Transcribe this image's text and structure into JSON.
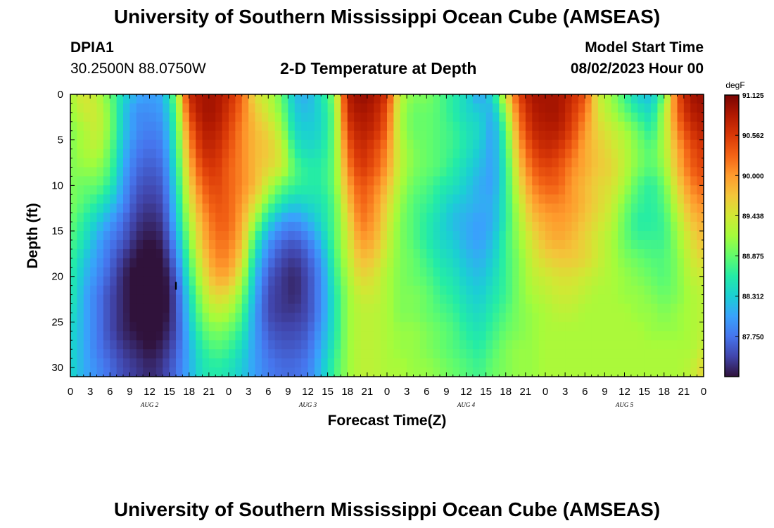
{
  "header": {
    "title": "University of Southern Mississippi Ocean Cube (AMSEAS)",
    "station_id": "DPIA1",
    "coordinates": "30.2500N  88.0750W",
    "model_start_label": "Model Start Time",
    "model_start_value": "08/02/2023 Hour 00",
    "plot_title": "2-D Temperature at Depth"
  },
  "footer": {
    "title": "University of Southern Mississippi Ocean Cube (AMSEAS)"
  },
  "chart_data": {
    "type": "heatmap",
    "title": "2-D Temperature at Depth",
    "xlabel": "Forecast Time(Z)",
    "ylabel": "Depth (ft)",
    "x_range_hours": [
      0,
      96
    ],
    "y_range_ft": [
      0,
      31
    ],
    "y_inverted": true,
    "x_ticks": [
      "0",
      "3",
      "6",
      "9",
      "12",
      "15",
      "18",
      "21",
      "0",
      "3",
      "6",
      "9",
      "12",
      "15",
      "18",
      "21",
      "0",
      "3",
      "6",
      "9",
      "12",
      "15",
      "18",
      "21",
      "0",
      "3",
      "6",
      "9",
      "12",
      "15",
      "18",
      "21",
      "0"
    ],
    "x_tick_hours": [
      0,
      3,
      6,
      9,
      12,
      15,
      18,
      21,
      24,
      27,
      30,
      33,
      36,
      39,
      42,
      45,
      48,
      51,
      54,
      57,
      60,
      63,
      66,
      69,
      72,
      75,
      78,
      81,
      84,
      87,
      90,
      93,
      96
    ],
    "day_labels": [
      {
        "label": "AUG 2",
        "hour": 12
      },
      {
        "label": "AUG 3",
        "hour": 36
      },
      {
        "label": "AUG 4",
        "hour": 60
      },
      {
        "label": "AUG 5",
        "hour": 84
      }
    ],
    "y_ticks": [
      "0",
      "5",
      "10",
      "15",
      "20",
      "25",
      "30"
    ],
    "y_tick_values": [
      0,
      5,
      10,
      15,
      20,
      25,
      30
    ],
    "colorbar": {
      "unit": "degF",
      "min": 87.187,
      "max": 91.125,
      "tick_values": [
        91.125,
        90.562,
        90.0,
        89.438,
        88.875,
        88.312,
        87.75
      ],
      "tick_labels": [
        "91.125",
        "90.562",
        "90.000",
        "89.438",
        "88.875",
        "88.312",
        "87.750"
      ],
      "colormap": [
        "#30123b",
        "#4145ab",
        "#4675ed",
        "#39a2fc",
        "#1bcfd4",
        "#24eca6",
        "#61fc6c",
        "#a4fc3b",
        "#d1e834",
        "#f3c63a",
        "#fe9b2d",
        "#f36315",
        "#d93807",
        "#b11901",
        "#7a0403"
      ]
    },
    "marker": {
      "label": "I",
      "hour": 16,
      "depth_ft": 21
    },
    "temperature_degF": {
      "hours": [
        0,
        2,
        4,
        6,
        8,
        10,
        12,
        14,
        16,
        18,
        20,
        22,
        24,
        26,
        28,
        30,
        32,
        34,
        36,
        38,
        40,
        42,
        44,
        46,
        48,
        50,
        52,
        54,
        56,
        58,
        60,
        62,
        64,
        66,
        68,
        70,
        72,
        74,
        76,
        78,
        80,
        82,
        84,
        86,
        88,
        90,
        92,
        94,
        96
      ],
      "depths_ft": [
        0,
        2,
        4,
        6,
        8,
        10,
        12,
        14,
        16,
        18,
        20,
        22,
        24,
        26,
        28,
        30
      ],
      "values": [
        [
          89.2,
          89.5,
          89.3,
          88.9,
          88.4,
          88.1,
          88.0,
          88.1,
          89.0,
          90.7,
          90.9,
          90.9,
          90.7,
          90.3,
          89.5,
          89.3,
          88.9,
          88.2,
          88.1,
          88.5,
          89.0,
          90.8,
          91.0,
          90.9,
          90.6,
          89.3,
          89.0,
          89.0,
          88.8,
          88.6,
          88.4,
          88.0,
          88.4,
          89.5,
          90.5,
          90.9,
          90.9,
          90.9,
          90.7,
          90.4,
          89.4,
          89.1,
          88.7,
          88.3,
          88.2,
          88.9,
          90.4,
          90.9,
          91.0
        ],
        [
          89.1,
          89.4,
          89.4,
          89.0,
          88.3,
          87.9,
          87.9,
          88.0,
          88.8,
          90.5,
          90.9,
          90.9,
          90.6,
          90.2,
          89.7,
          89.4,
          89.0,
          88.3,
          88.2,
          88.4,
          88.9,
          90.7,
          90.9,
          90.8,
          90.4,
          89.2,
          88.9,
          88.9,
          88.8,
          88.6,
          88.4,
          88.3,
          88.1,
          89.1,
          90.3,
          90.8,
          90.9,
          90.9,
          90.6,
          90.2,
          89.5,
          89.2,
          88.9,
          88.6,
          88.4,
          89.2,
          90.3,
          90.8,
          90.9
        ],
        [
          89.0,
          89.2,
          89.4,
          89.0,
          88.3,
          87.9,
          87.8,
          87.9,
          88.7,
          90.2,
          90.8,
          90.8,
          90.5,
          90.1,
          89.8,
          89.6,
          89.2,
          88.4,
          88.3,
          88.4,
          88.9,
          90.5,
          90.8,
          90.7,
          90.3,
          89.2,
          88.9,
          88.9,
          88.8,
          88.7,
          88.5,
          88.4,
          88.0,
          88.8,
          90.1,
          90.7,
          90.8,
          90.8,
          90.5,
          90.0,
          89.6,
          89.4,
          89.2,
          88.9,
          88.6,
          89.2,
          90.1,
          90.6,
          90.8
        ],
        [
          89.0,
          89.2,
          89.3,
          88.9,
          88.2,
          87.8,
          87.7,
          87.8,
          88.6,
          90.0,
          90.7,
          90.7,
          90.4,
          90.1,
          89.8,
          89.7,
          89.4,
          88.6,
          88.4,
          88.5,
          88.9,
          90.3,
          90.7,
          90.5,
          90.1,
          89.3,
          89.0,
          88.9,
          88.8,
          88.7,
          88.5,
          88.3,
          88.0,
          88.7,
          89.9,
          90.5,
          90.7,
          90.6,
          90.3,
          89.9,
          89.7,
          89.5,
          89.3,
          89.0,
          88.8,
          89.2,
          89.9,
          90.4,
          90.6
        ],
        [
          89.0,
          89.1,
          89.1,
          88.8,
          88.1,
          87.7,
          87.6,
          87.7,
          88.5,
          89.8,
          90.5,
          90.6,
          90.3,
          90.1,
          89.8,
          89.6,
          89.4,
          88.8,
          88.6,
          88.6,
          88.9,
          90.1,
          90.6,
          90.4,
          90.0,
          89.3,
          89.0,
          88.9,
          88.8,
          88.6,
          88.4,
          88.2,
          88.0,
          88.6,
          89.7,
          90.3,
          90.5,
          90.4,
          90.1,
          89.9,
          89.7,
          89.6,
          89.3,
          89.0,
          88.8,
          89.1,
          89.8,
          90.3,
          90.5
        ],
        [
          89.0,
          88.9,
          88.9,
          88.6,
          88.0,
          87.6,
          87.5,
          87.6,
          88.4,
          89.6,
          90.3,
          90.5,
          90.3,
          90.1,
          89.8,
          89.3,
          88.9,
          88.7,
          88.6,
          88.6,
          88.9,
          89.9,
          90.4,
          90.2,
          89.8,
          89.2,
          88.9,
          88.8,
          88.6,
          88.5,
          88.3,
          88.1,
          88.0,
          88.6,
          89.5,
          90.1,
          90.3,
          90.3,
          90.0,
          89.8,
          89.6,
          89.5,
          89.2,
          88.8,
          88.6,
          88.9,
          89.6,
          90.1,
          90.3
        ],
        [
          89.0,
          88.8,
          88.6,
          88.3,
          87.9,
          87.5,
          87.4,
          87.5,
          88.3,
          89.4,
          90.1,
          90.4,
          90.3,
          90.0,
          89.5,
          88.9,
          88.5,
          88.3,
          88.4,
          88.5,
          88.8,
          89.7,
          90.3,
          90.1,
          89.6,
          89.1,
          88.8,
          88.7,
          88.5,
          88.3,
          88.2,
          88.1,
          88.1,
          88.6,
          89.3,
          89.9,
          90.1,
          90.1,
          90.0,
          89.8,
          89.6,
          89.4,
          89.0,
          88.7,
          88.6,
          88.8,
          89.4,
          89.9,
          90.1
        ],
        [
          88.9,
          88.6,
          88.3,
          88.0,
          87.7,
          87.4,
          87.3,
          87.4,
          88.2,
          89.2,
          89.9,
          90.3,
          90.3,
          89.9,
          89.1,
          88.4,
          88.0,
          87.9,
          88.1,
          88.4,
          88.8,
          89.5,
          90.2,
          90.0,
          89.5,
          89.0,
          88.8,
          88.6,
          88.4,
          88.2,
          88.1,
          88.0,
          88.1,
          88.6,
          89.2,
          89.7,
          89.9,
          90.0,
          89.9,
          89.7,
          89.5,
          89.3,
          88.9,
          88.6,
          88.6,
          88.7,
          89.2,
          89.7,
          89.9
        ],
        [
          88.8,
          88.5,
          88.1,
          87.8,
          87.6,
          87.3,
          87.2,
          87.3,
          88.0,
          89.0,
          89.8,
          90.2,
          90.2,
          89.8,
          88.7,
          88.0,
          87.7,
          87.6,
          87.8,
          88.2,
          88.8,
          89.4,
          90.0,
          89.9,
          89.4,
          89.0,
          88.8,
          88.6,
          88.4,
          88.3,
          88.1,
          88.0,
          88.2,
          88.7,
          89.1,
          89.5,
          89.8,
          89.9,
          89.8,
          89.6,
          89.4,
          89.2,
          88.9,
          88.7,
          88.7,
          88.7,
          89.1,
          89.5,
          89.8
        ],
        [
          88.7,
          88.3,
          88.0,
          87.7,
          87.4,
          87.2,
          87.1,
          87.2,
          87.8,
          88.8,
          89.6,
          90.1,
          90.1,
          89.6,
          88.4,
          87.8,
          87.5,
          87.4,
          87.6,
          88.0,
          88.7,
          89.3,
          89.8,
          89.7,
          89.3,
          89.0,
          88.9,
          88.7,
          88.5,
          88.4,
          88.2,
          88.1,
          88.3,
          88.7,
          89.0,
          89.4,
          89.6,
          89.7,
          89.7,
          89.6,
          89.4,
          89.2,
          89.0,
          88.9,
          88.8,
          88.8,
          89.0,
          89.4,
          89.6
        ],
        [
          88.6,
          88.2,
          87.9,
          87.6,
          87.3,
          87.1,
          87.0,
          87.1,
          87.6,
          88.6,
          89.4,
          89.9,
          89.9,
          89.3,
          88.2,
          87.6,
          87.4,
          87.3,
          87.5,
          87.9,
          88.6,
          89.2,
          89.6,
          89.5,
          89.2,
          89.0,
          88.9,
          88.8,
          88.6,
          88.5,
          88.3,
          88.2,
          88.4,
          88.7,
          89.0,
          89.3,
          89.4,
          89.5,
          89.5,
          89.4,
          89.3,
          89.2,
          89.1,
          89.0,
          88.9,
          88.8,
          89.0,
          89.3,
          89.4
        ],
        [
          88.6,
          88.1,
          87.8,
          87.5,
          87.3,
          87.1,
          87.0,
          87.1,
          87.5,
          88.4,
          89.2,
          89.6,
          89.5,
          89.0,
          88.1,
          87.5,
          87.4,
          87.3,
          87.5,
          87.9,
          88.5,
          89.1,
          89.4,
          89.4,
          89.2,
          89.0,
          89.0,
          88.9,
          88.7,
          88.6,
          88.4,
          88.3,
          88.5,
          88.7,
          89.0,
          89.2,
          89.3,
          89.4,
          89.4,
          89.3,
          89.2,
          89.2,
          89.1,
          89.1,
          89.0,
          88.9,
          89.0,
          89.2,
          89.3
        ],
        [
          88.5,
          88.1,
          87.8,
          87.5,
          87.3,
          87.1,
          87.1,
          87.1,
          87.5,
          88.3,
          89.0,
          89.3,
          89.2,
          88.8,
          88.0,
          87.5,
          87.4,
          87.4,
          87.5,
          87.9,
          88.5,
          89.1,
          89.3,
          89.3,
          89.2,
          89.0,
          89.0,
          88.9,
          88.8,
          88.7,
          88.5,
          88.4,
          88.6,
          88.8,
          89.0,
          89.1,
          89.2,
          89.3,
          89.3,
          89.2,
          89.2,
          89.2,
          89.2,
          89.1,
          89.1,
          89.0,
          89.1,
          89.2,
          89.3
        ],
        [
          88.4,
          88.1,
          87.8,
          87.5,
          87.3,
          87.2,
          87.1,
          87.2,
          87.5,
          88.2,
          88.8,
          89.0,
          88.9,
          88.6,
          88.0,
          87.6,
          87.5,
          87.5,
          87.6,
          88.0,
          88.5,
          89.1,
          89.3,
          89.3,
          89.2,
          89.1,
          89.1,
          89.0,
          88.9,
          88.8,
          88.6,
          88.5,
          88.7,
          88.9,
          89.0,
          89.1,
          89.2,
          89.2,
          89.2,
          89.2,
          89.2,
          89.2,
          89.2,
          89.2,
          89.1,
          89.1,
          89.1,
          89.2,
          89.3
        ],
        [
          88.4,
          88.1,
          87.8,
          87.6,
          87.4,
          87.3,
          87.2,
          87.3,
          87.6,
          88.1,
          88.6,
          88.8,
          88.7,
          88.4,
          88.0,
          87.7,
          87.6,
          87.6,
          87.7,
          88.1,
          88.6,
          89.1,
          89.3,
          89.3,
          89.2,
          89.1,
          89.1,
          89.0,
          88.9,
          88.8,
          88.7,
          88.6,
          88.8,
          89.0,
          89.1,
          89.1,
          89.2,
          89.2,
          89.2,
          89.2,
          89.2,
          89.2,
          89.2,
          89.2,
          89.2,
          89.2,
          89.2,
          89.2,
          89.4
        ],
        [
          88.4,
          88.1,
          87.9,
          87.7,
          87.5,
          87.4,
          87.3,
          87.4,
          87.7,
          88.1,
          88.5,
          88.6,
          88.5,
          88.3,
          88.0,
          87.8,
          87.7,
          87.7,
          87.8,
          88.2,
          88.7,
          89.1,
          89.3,
          89.3,
          89.2,
          89.2,
          89.1,
          89.1,
          89.0,
          88.9,
          88.8,
          88.7,
          88.9,
          89.0,
          89.1,
          89.1,
          89.2,
          89.2,
          89.2,
          89.2,
          89.2,
          89.2,
          89.2,
          89.2,
          89.2,
          89.2,
          89.2,
          89.3,
          89.6
        ]
      ]
    }
  }
}
